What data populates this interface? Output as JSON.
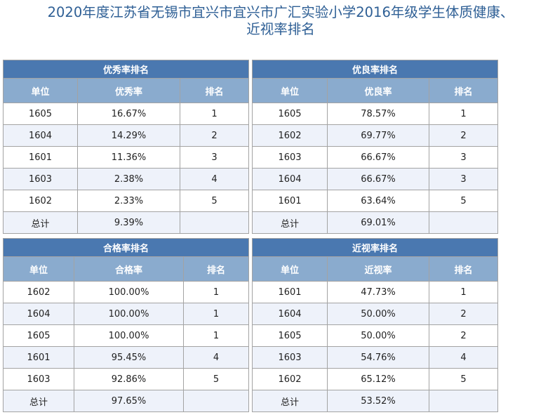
{
  "title": {
    "line1": "2020年度江苏省无锡市宜兴市宜兴市广汇实验小学2016年级学生体质健康、",
    "line2": "近视率排名"
  },
  "tables": [
    {
      "caption": "优秀率排名",
      "headers": [
        "单位",
        "优秀率",
        "排名"
      ],
      "rows": [
        [
          "1605",
          "16.67%",
          "1"
        ],
        [
          "1604",
          "14.29%",
          "2"
        ],
        [
          "1601",
          "11.36%",
          "3"
        ],
        [
          "1603",
          "2.38%",
          "4"
        ],
        [
          "1602",
          "2.33%",
          "5"
        ],
        [
          "总计",
          "9.39%",
          ""
        ]
      ]
    },
    {
      "caption": "优良率排名",
      "headers": [
        "单位",
        "优良率",
        "排名"
      ],
      "rows": [
        [
          "1605",
          "78.57%",
          "1"
        ],
        [
          "1602",
          "69.77%",
          "2"
        ],
        [
          "1603",
          "66.67%",
          "3"
        ],
        [
          "1604",
          "66.67%",
          "3"
        ],
        [
          "1601",
          "63.64%",
          "5"
        ],
        [
          "总计",
          "69.01%",
          ""
        ]
      ]
    },
    {
      "caption": "合格率排名",
      "headers": [
        "单位",
        "合格率",
        "排名"
      ],
      "rows": [
        [
          "1602",
          "100.00%",
          "1"
        ],
        [
          "1604",
          "100.00%",
          "1"
        ],
        [
          "1605",
          "100.00%",
          "1"
        ],
        [
          "1601",
          "95.45%",
          "4"
        ],
        [
          "1603",
          "92.86%",
          "5"
        ],
        [
          "总计",
          "97.65%",
          ""
        ]
      ]
    },
    {
      "caption": "近视率排名",
      "headers": [
        "单位",
        "近视率",
        "排名"
      ],
      "rows": [
        [
          "1601",
          "47.73%",
          "1"
        ],
        [
          "1604",
          "50.00%",
          "2"
        ],
        [
          "1605",
          "50.00%",
          "2"
        ],
        [
          "1603",
          "54.76%",
          "4"
        ],
        [
          "1602",
          "65.12%",
          "5"
        ],
        [
          "总计",
          "53.52%",
          ""
        ]
      ]
    }
  ]
}
